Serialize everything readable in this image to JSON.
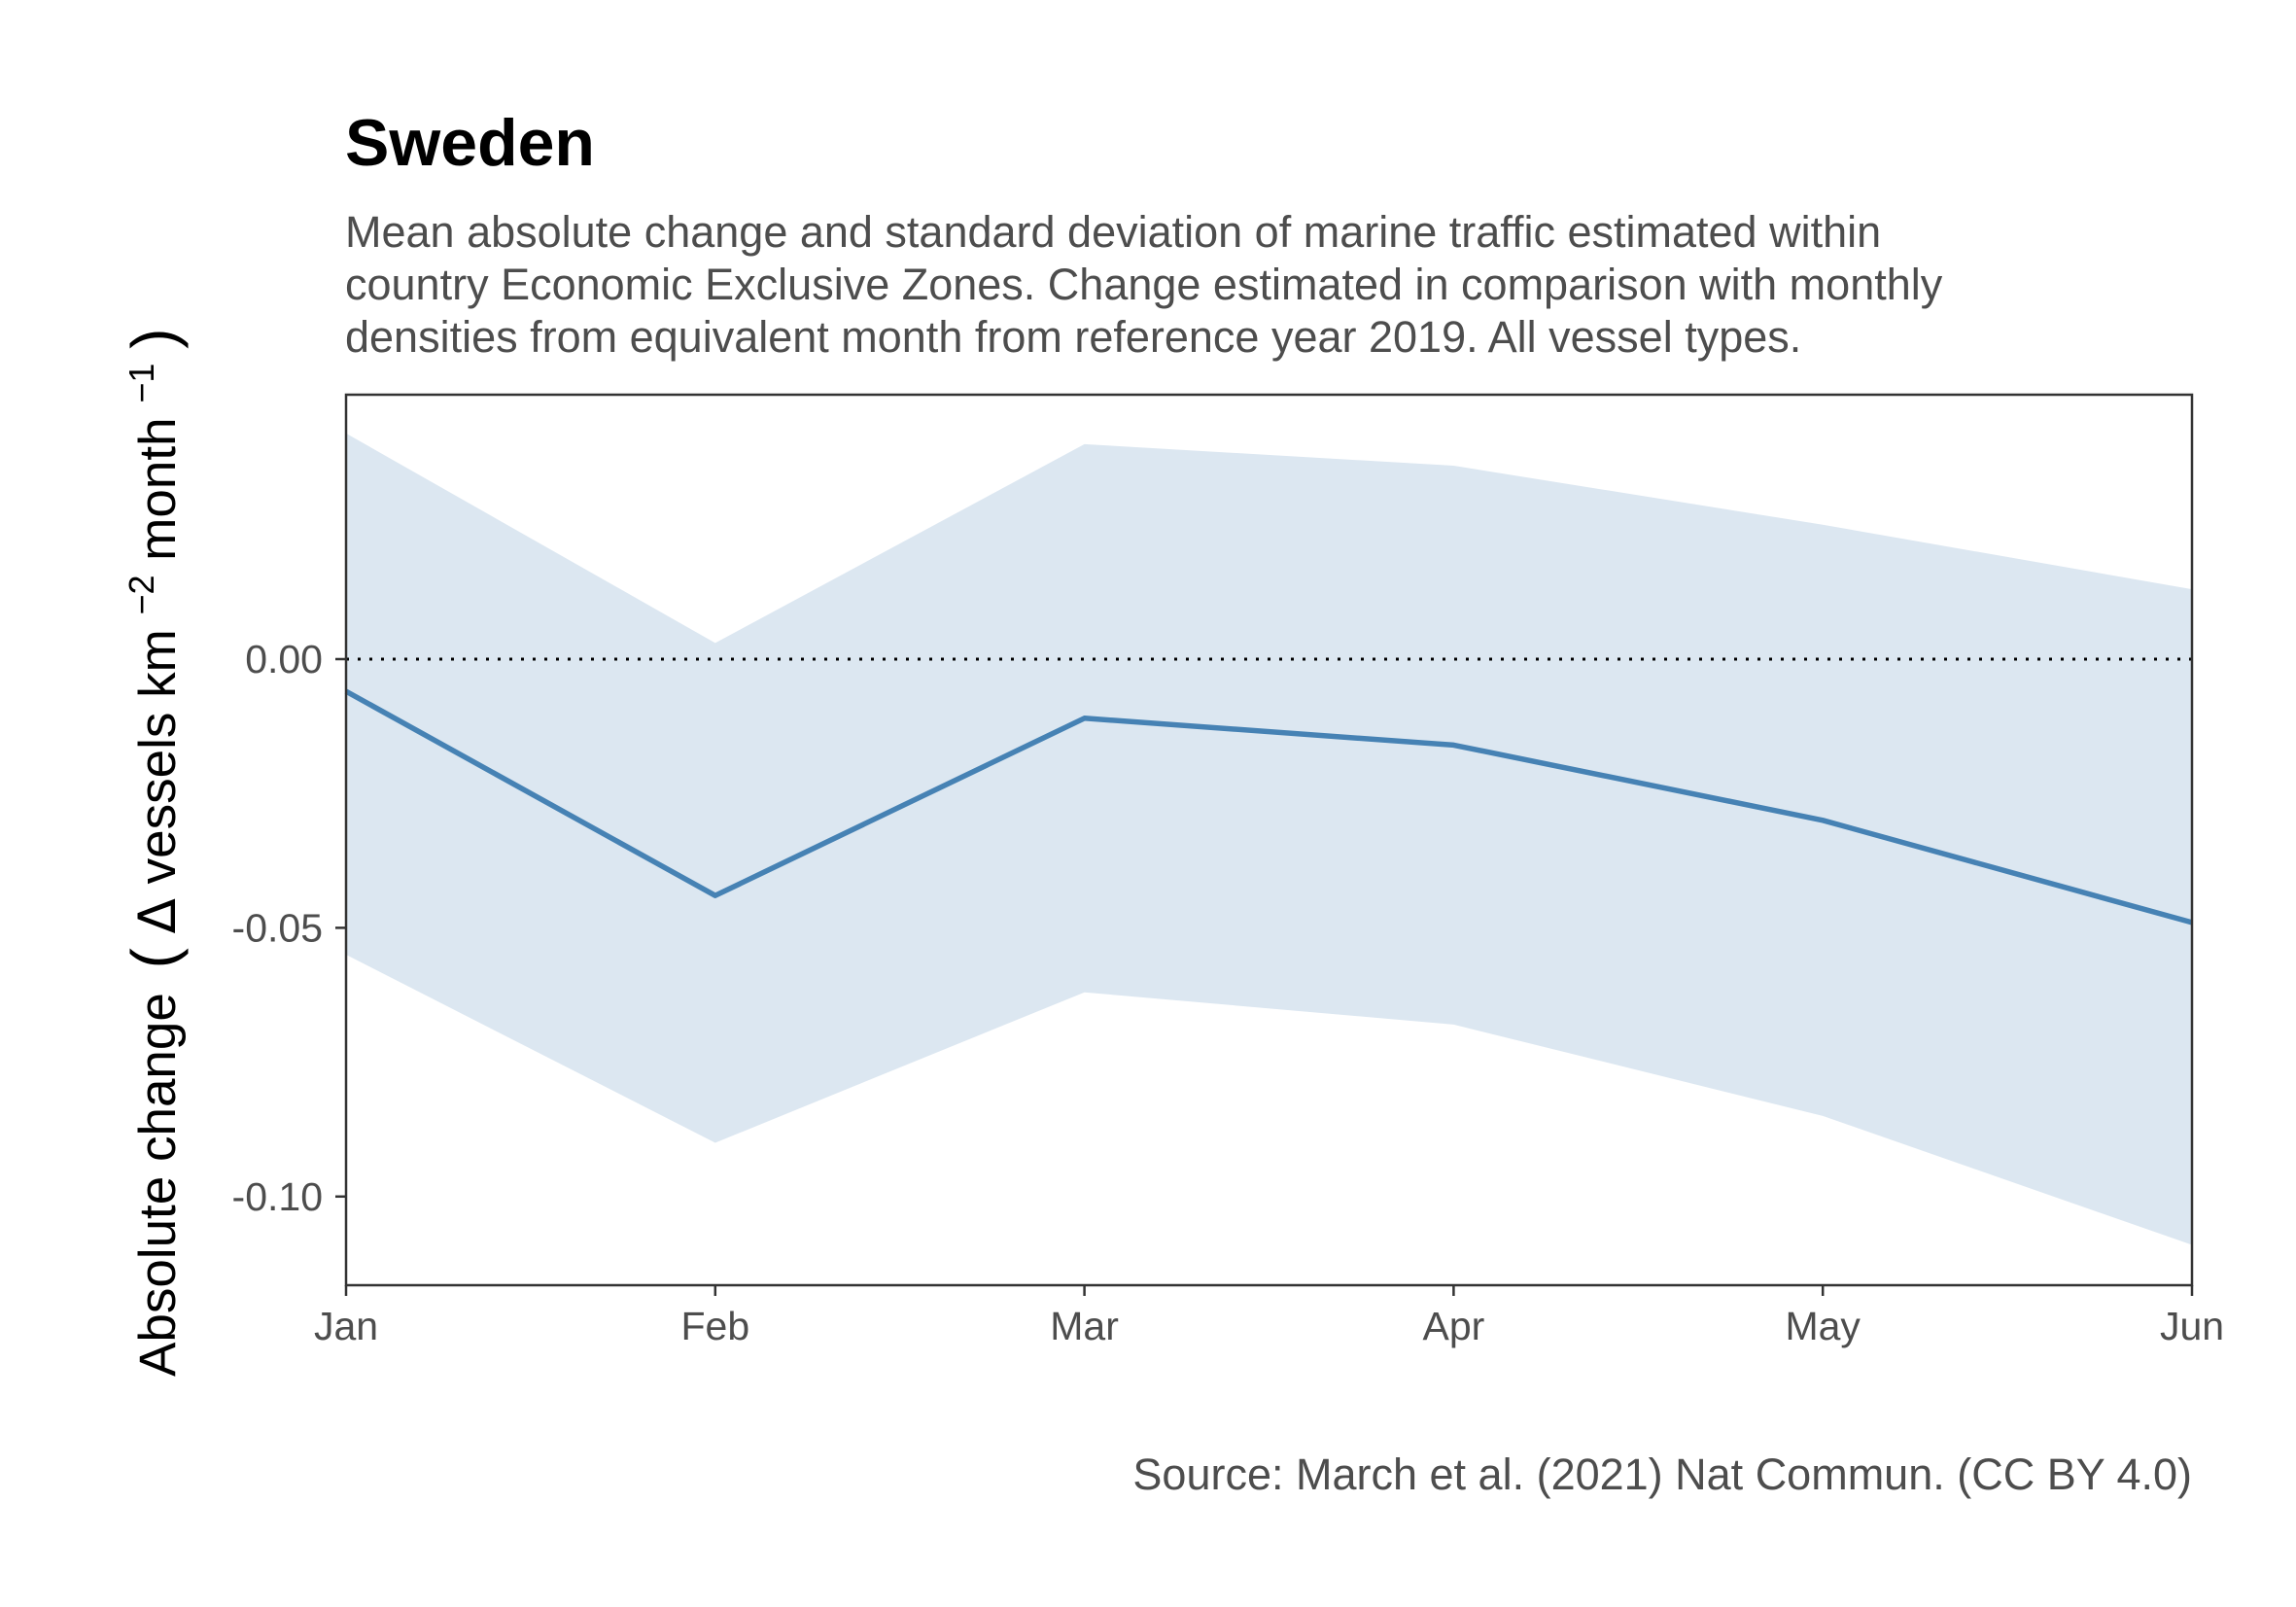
{
  "chart_data": {
    "type": "line",
    "title": "Sweden",
    "subtitle": [
      "Mean absolute change and standard deviation of marine traffic estimated within",
      "country Economic Exclusive Zones. Change estimated in comparison with monthly",
      "densities from equivalent month from reference year 2019. All vessel types."
    ],
    "xlabel": "",
    "ylabel": {
      "main": "Absolute change",
      "open": "(",
      "delta": "Δ",
      "units_a": " vessels km",
      "sup_a": "−2",
      "units_b": " month",
      "sup_b": "−1",
      "close": ")"
    },
    "caption": "Source: March et al. (2021) Nat Commun. (CC BY 4.0)",
    "categories": [
      "Jan",
      "Feb",
      "Mar",
      "Apr",
      "May",
      "Jun"
    ],
    "series": [
      {
        "values": [
          -0.006,
          -0.044,
          -0.011,
          -0.016,
          -0.03,
          -0.049
        ],
        "lower": [
          -0.055,
          -0.09,
          -0.062,
          -0.068,
          -0.085,
          -0.109
        ],
        "upper": [
          0.042,
          0.003,
          0.04,
          0.036,
          0.025,
          0.013
        ]
      }
    ],
    "yticks": [
      {
        "value": 0.0,
        "label": "0.00"
      },
      {
        "value": -0.05,
        "label": "-0.05"
      },
      {
        "value": -0.1,
        "label": "-0.10"
      }
    ],
    "ylim": [
      -0.1165,
      0.0492
    ],
    "reference_line": 0,
    "grid": false,
    "colors": {
      "line": "#4682b4",
      "ribbon": "#dce7f1",
      "panel_border": "#333333",
      "reference": "#000000"
    }
  }
}
